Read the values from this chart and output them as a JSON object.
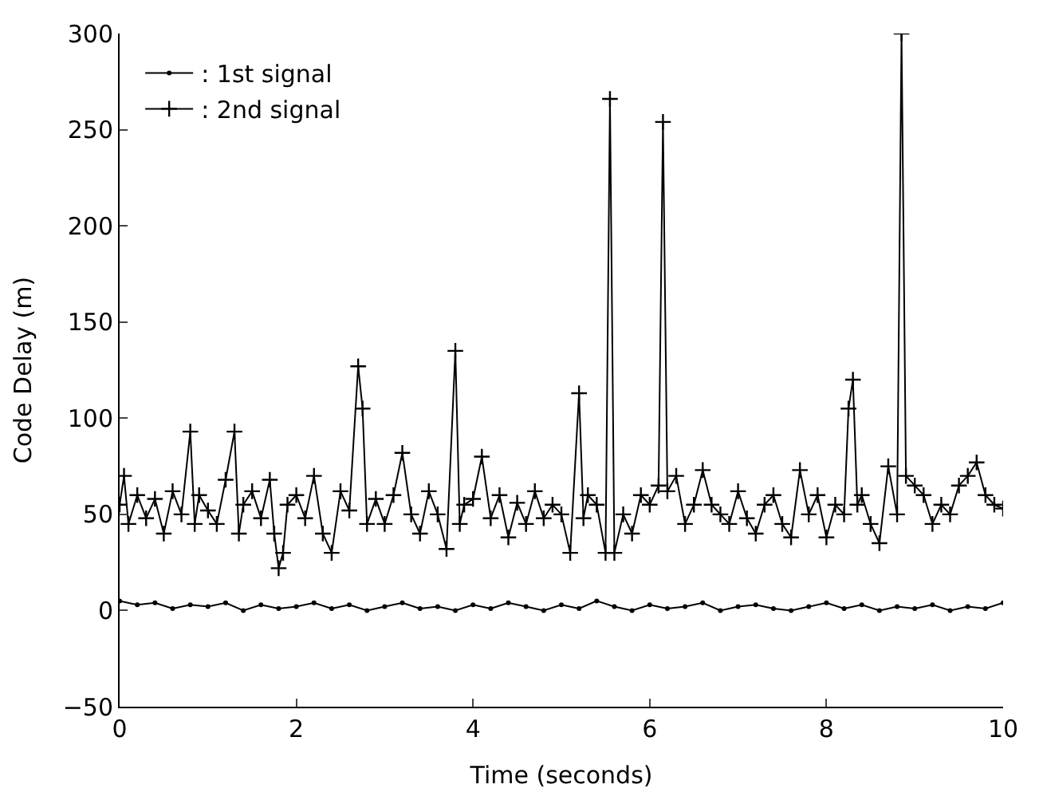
{
  "chart_data": {
    "type": "line",
    "xlabel": "Time (seconds)",
    "ylabel": "Code Delay (m)",
    "xlim": [
      0,
      10
    ],
    "xticks": [
      0,
      2,
      4,
      6,
      8,
      10
    ],
    "ylim": [
      -50,
      300
    ],
    "yticks": [
      -50,
      0,
      50,
      100,
      150,
      200,
      250,
      300
    ],
    "legend": "top left",
    "series": [
      {
        "name": ": 1st signal",
        "color": "#000000",
        "marker": "circle",
        "x": [
          0,
          0.2,
          0.4,
          0.6,
          0.8,
          1.0,
          1.2,
          1.4,
          1.6,
          1.8,
          2.0,
          2.2,
          2.4,
          2.6,
          2.8,
          3.0,
          3.2,
          3.4,
          3.6,
          3.8,
          4.0,
          4.2,
          4.4,
          4.6,
          4.8,
          5.0,
          5.2,
          5.4,
          5.6,
          5.8,
          6.0,
          6.2,
          6.4,
          6.6,
          6.8,
          7.0,
          7.2,
          7.4,
          7.6,
          7.8,
          8.0,
          8.2,
          8.4,
          8.6,
          8.8,
          9.0,
          9.2,
          9.4,
          9.6,
          9.8,
          10.0
        ],
        "values": [
          5,
          3,
          4,
          1,
          3,
          2,
          4,
          0,
          3,
          1,
          2,
          4,
          1,
          3,
          0,
          2,
          4,
          1,
          2,
          0,
          3,
          1,
          4,
          2,
          0,
          3,
          1,
          5,
          2,
          0,
          3,
          1,
          2,
          4,
          0,
          2,
          3,
          1,
          0,
          2,
          4,
          1,
          3,
          0,
          2,
          1,
          3,
          0,
          2,
          1,
          4
        ]
      },
      {
        "name": ": 2nd signal",
        "color": "#000000",
        "marker": "cross",
        "x": [
          0.0,
          0.05,
          0.1,
          0.2,
          0.3,
          0.4,
          0.5,
          0.6,
          0.7,
          0.8,
          0.85,
          0.9,
          1.0,
          1.1,
          1.2,
          1.3,
          1.35,
          1.4,
          1.5,
          1.6,
          1.7,
          1.75,
          1.8,
          1.85,
          1.9,
          2.0,
          2.1,
          2.2,
          2.3,
          2.4,
          2.5,
          2.6,
          2.7,
          2.75,
          2.8,
          2.9,
          3.0,
          3.1,
          3.2,
          3.3,
          3.4,
          3.5,
          3.6,
          3.7,
          3.8,
          3.85,
          3.9,
          4.0,
          4.1,
          4.2,
          4.3,
          4.4,
          4.5,
          4.6,
          4.7,
          4.8,
          4.9,
          5.0,
          5.1,
          5.2,
          5.25,
          5.3,
          5.4,
          5.5,
          5.55,
          5.6,
          5.7,
          5.8,
          5.9,
          6.0,
          6.1,
          6.15,
          6.2,
          6.3,
          6.4,
          6.5,
          6.6,
          6.7,
          6.8,
          6.9,
          7.0,
          7.1,
          7.2,
          7.3,
          7.4,
          7.5,
          7.6,
          7.7,
          7.8,
          7.9,
          8.0,
          8.1,
          8.2,
          8.25,
          8.3,
          8.35,
          8.4,
          8.5,
          8.6,
          8.7,
          8.8,
          8.85,
          8.9,
          9.0,
          9.1,
          9.2,
          9.3,
          9.4,
          9.5,
          9.6,
          9.7,
          9.8,
          9.9,
          10.0
        ],
        "values": [
          55,
          70,
          45,
          60,
          48,
          58,
          40,
          62,
          50,
          93,
          45,
          60,
          52,
          45,
          68,
          93,
          40,
          55,
          62,
          48,
          68,
          40,
          22,
          30,
          55,
          60,
          48,
          70,
          40,
          30,
          62,
          52,
          127,
          105,
          45,
          58,
          45,
          60,
          82,
          50,
          40,
          62,
          50,
          32,
          135,
          45,
          55,
          58,
          80,
          48,
          60,
          38,
          56,
          45,
          62,
          48,
          55,
          50,
          30,
          113,
          48,
          60,
          55,
          30,
          266,
          30,
          50,
          40,
          60,
          55,
          65,
          254,
          62,
          70,
          45,
          55,
          73,
          55,
          50,
          45,
          62,
          48,
          40,
          55,
          60,
          45,
          38,
          73,
          50,
          60,
          38,
          55,
          50,
          105,
          120,
          55,
          60,
          45,
          35,
          75,
          50,
          300,
          70,
          65,
          60,
          45,
          55,
          50,
          65,
          70,
          77,
          60,
          55,
          53
        ]
      }
    ]
  }
}
